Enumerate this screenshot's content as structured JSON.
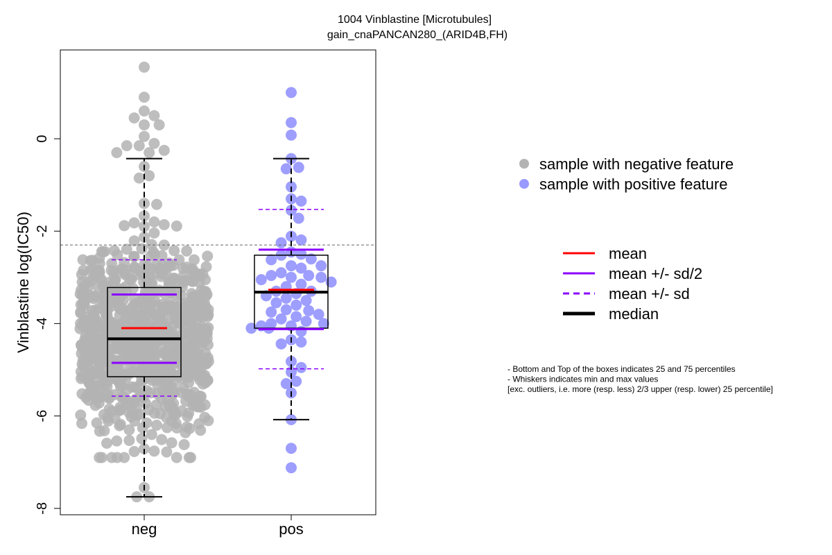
{
  "chart_data": {
    "type": "boxplot",
    "title": "1004 Vinblastine [Microtubules]",
    "subtitle": "gain_cnaPANCAN280_(ARID4B,FH)",
    "ylabel": "Vinblastine log(IC50)",
    "xlabel": "",
    "ylim": [
      -8.1,
      1.9
    ],
    "yticks": [
      {
        "value": -8,
        "label": "-8"
      },
      {
        "value": -6,
        "label": "-6"
      },
      {
        "value": -4,
        "label": "-4"
      },
      {
        "value": -2,
        "label": "-2"
      },
      {
        "value": 0,
        "label": "0"
      }
    ],
    "reference_line": -2.3,
    "groups": [
      {
        "label": "neg",
        "color": "#b3b3b3",
        "n_points": 900,
        "q1": -5.15,
        "median": -4.33,
        "q3": -3.22,
        "whisker_low": -7.75,
        "whisker_high": -0.43,
        "mean": -4.1,
        "mean_minus_half_sd": -4.85,
        "mean_plus_half_sd": -3.37,
        "mean_minus_sd": -5.57,
        "mean_plus_sd": -2.62,
        "points": [
          1.55,
          0.9,
          0.6,
          0.5,
          0.45,
          0.3,
          0.3,
          0.05,
          -0.1,
          -0.15,
          -0.15,
          -0.25,
          -0.3,
          -0.3,
          -0.6,
          -0.8,
          -0.85,
          -7.55,
          -7.75,
          -7.75
        ]
      },
      {
        "label": "pos",
        "color": "#9999ff",
        "n_points": 65,
        "q1": -4.1,
        "median": -3.32,
        "q3": -2.52,
        "whisker_low": -6.08,
        "whisker_high": -0.43,
        "mean": -3.27,
        "mean_minus_half_sd": -4.12,
        "mean_plus_half_sd": -2.4,
        "mean_minus_sd": -4.98,
        "mean_plus_sd": -1.53,
        "points": [
          1.0,
          0.35,
          0.08,
          -0.43,
          -0.62,
          -0.65,
          -1.3,
          -1.35,
          -1.55,
          -1.72,
          -2.25,
          -2.45,
          -2.5,
          -2.52,
          -2.6,
          -2.75,
          -2.75,
          -2.8,
          -2.9,
          -3.0,
          -3.0,
          -3.05,
          -3.1,
          -3.15,
          -3.2,
          -3.3,
          -3.3,
          -3.35,
          -3.4,
          -3.45,
          -3.5,
          -3.55,
          -3.6,
          -3.7,
          -3.75,
          -3.8,
          -3.85,
          -3.9,
          -3.95,
          -4.0,
          -4.0,
          -4.05,
          -4.05,
          -4.1,
          -4.1,
          -4.35,
          -4.4,
          -4.82,
          -4.95,
          -5.05,
          -5.25,
          -5.3,
          -5.5,
          -6.08,
          -6.7,
          -7.12
        ]
      }
    ],
    "legend_points": [
      {
        "label": "sample with negative feature",
        "color": "#b3b3b3"
      },
      {
        "label": "sample with positive feature",
        "color": "#9999ff"
      }
    ],
    "legend_lines": [
      {
        "label": "mean",
        "color": "#ff0000",
        "style": "solid"
      },
      {
        "label": "mean +/- sd/2",
        "color": "#8b00ff",
        "style": "solid"
      },
      {
        "label": "mean +/- sd",
        "color": "#8b00ff",
        "style": "dashed"
      },
      {
        "label": "median",
        "color": "#000000",
        "style": "thick"
      }
    ],
    "notes": [
      "- Bottom and Top of the boxes indicates 25 and 75 percentiles",
      "- Whiskers indicates min and max values",
      "[exc. outliers, i.e. more (resp. less) 2/3 upper (resp. lower) 25 percentile]"
    ],
    "grid": false,
    "legend_position": "right"
  }
}
